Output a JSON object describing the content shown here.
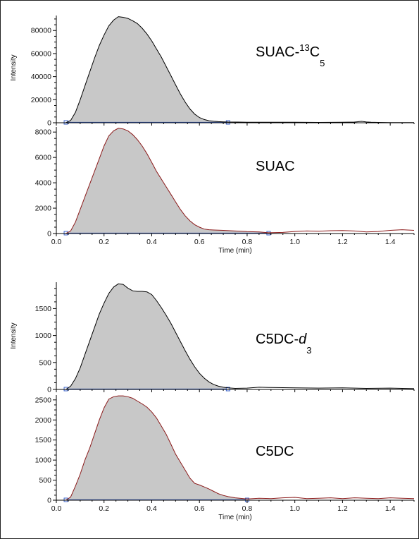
{
  "chart_data": [
    {
      "type": "area",
      "label_parts": [
        {
          "text": "SUAC-",
          "style": "normal"
        },
        {
          "text": "13",
          "style": "sup"
        },
        {
          "text": "C",
          "style": "normal"
        },
        {
          "text": "5",
          "style": "sub"
        }
      ],
      "ylabel": "Intensity",
      "xlim": [
        0,
        1.5
      ],
      "ylim": [
        0,
        93000
      ],
      "yticks": [
        0,
        20000,
        40000,
        60000,
        80000
      ],
      "line_color": "#000000",
      "fill_color": "#c8c8c8",
      "integration_range": [
        0.04,
        0.72
      ],
      "x": [
        0.0,
        0.04,
        0.06,
        0.08,
        0.1,
        0.12,
        0.14,
        0.16,
        0.18,
        0.2,
        0.22,
        0.24,
        0.26,
        0.28,
        0.3,
        0.32,
        0.34,
        0.36,
        0.38,
        0.4,
        0.42,
        0.44,
        0.46,
        0.48,
        0.5,
        0.52,
        0.54,
        0.56,
        0.58,
        0.6,
        0.62,
        0.64,
        0.66,
        0.68,
        0.7,
        0.72,
        0.76,
        0.8,
        0.9,
        1.0,
        1.1,
        1.2,
        1.25,
        1.28,
        1.3,
        1.32,
        1.35,
        1.4,
        1.5
      ],
      "y": [
        0,
        0,
        2000,
        9000,
        20000,
        32000,
        44000,
        56000,
        67000,
        76000,
        84000,
        89000,
        92000,
        91500,
        90500,
        88500,
        86000,
        82000,
        77000,
        71000,
        64000,
        57000,
        49000,
        41000,
        33000,
        25000,
        18000,
        12000,
        7500,
        4500,
        2800,
        1800,
        1300,
        1000,
        800,
        700,
        600,
        500,
        400,
        500,
        300,
        400,
        600,
        1200,
        700,
        400,
        300,
        200,
        100
      ]
    },
    {
      "type": "area",
      "label_parts": [
        {
          "text": "SUAC",
          "style": "normal"
        }
      ],
      "xlabel": "Time (min)",
      "xlim": [
        0,
        1.5
      ],
      "ylim": [
        0,
        8400
      ],
      "yticks": [
        0,
        2000,
        4000,
        6000,
        8000
      ],
      "xticks": [
        "0.0",
        "0.2",
        "0.4",
        "0.6",
        "0.8",
        "1.0",
        "1.2",
        "1.4"
      ],
      "line_color": "#8b1a1a",
      "fill_color": "#c8c8c8",
      "integration_range": [
        0.04,
        0.89
      ],
      "x": [
        0.0,
        0.04,
        0.06,
        0.08,
        0.1,
        0.12,
        0.14,
        0.16,
        0.18,
        0.2,
        0.22,
        0.24,
        0.26,
        0.28,
        0.3,
        0.32,
        0.34,
        0.36,
        0.38,
        0.4,
        0.42,
        0.44,
        0.46,
        0.48,
        0.5,
        0.52,
        0.54,
        0.56,
        0.58,
        0.6,
        0.62,
        0.64,
        0.66,
        0.7,
        0.75,
        0.8,
        0.85,
        0.89,
        0.95,
        1.0,
        1.05,
        1.1,
        1.15,
        1.2,
        1.25,
        1.3,
        1.35,
        1.4,
        1.45,
        1.5
      ],
      "y": [
        0,
        0,
        200,
        900,
        1900,
        2900,
        3900,
        4900,
        5900,
        6900,
        7700,
        8100,
        8300,
        8250,
        8100,
        7800,
        7400,
        6900,
        6300,
        5600,
        4900,
        4300,
        3700,
        3100,
        2500,
        1900,
        1400,
        1000,
        700,
        500,
        350,
        300,
        280,
        250,
        200,
        150,
        120,
        60,
        90,
        160,
        200,
        180,
        220,
        240,
        200,
        120,
        160,
        250,
        300,
        250
      ]
    },
    {
      "type": "area",
      "label_parts": [
        {
          "text": "C5DC-",
          "style": "normal"
        },
        {
          "text": "d",
          "style": "italic"
        },
        {
          "text": "3",
          "style": "sub"
        }
      ],
      "ylabel": "Intensity",
      "xlim": [
        0,
        1.5
      ],
      "ylim": [
        0,
        1990
      ],
      "yticks": [
        0,
        500,
        1000,
        1500
      ],
      "line_color": "#000000",
      "fill_color": "#c8c8c8",
      "integration_range": [
        0.04,
        0.72
      ],
      "x": [
        0.0,
        0.04,
        0.06,
        0.08,
        0.1,
        0.12,
        0.14,
        0.16,
        0.18,
        0.2,
        0.22,
        0.24,
        0.26,
        0.28,
        0.3,
        0.32,
        0.34,
        0.36,
        0.38,
        0.4,
        0.42,
        0.44,
        0.46,
        0.48,
        0.5,
        0.52,
        0.54,
        0.56,
        0.58,
        0.6,
        0.62,
        0.64,
        0.66,
        0.68,
        0.7,
        0.72,
        0.75,
        0.8,
        0.85,
        0.9,
        1.0,
        1.1,
        1.2,
        1.3,
        1.4,
        1.5
      ],
      "y": [
        0,
        0,
        60,
        200,
        400,
        650,
        900,
        1150,
        1400,
        1600,
        1780,
        1900,
        1960,
        1950,
        1880,
        1830,
        1820,
        1820,
        1810,
        1760,
        1650,
        1520,
        1380,
        1230,
        1060,
        890,
        720,
        560,
        420,
        300,
        210,
        140,
        90,
        60,
        40,
        30,
        20,
        25,
        40,
        35,
        30,
        25,
        30,
        20,
        25,
        15
      ]
    },
    {
      "type": "area",
      "label_parts": [
        {
          "text": "C5DC",
          "style": "normal"
        }
      ],
      "xlabel": "Time (min)",
      "xlim": [
        0,
        1.5
      ],
      "ylim": [
        0,
        2620
      ],
      "yticks": [
        0,
        500,
        1000,
        1500,
        2000,
        2500
      ],
      "xticks": [
        "0.0",
        "0.2",
        "0.4",
        "0.6",
        "0.8",
        "1.0",
        "1.2",
        "1.4"
      ],
      "line_color": "#8b1a1a",
      "fill_color": "#c8c8c8",
      "integration_range": [
        0.04,
        0.8
      ],
      "x": [
        0.0,
        0.04,
        0.06,
        0.08,
        0.1,
        0.12,
        0.14,
        0.16,
        0.18,
        0.2,
        0.22,
        0.24,
        0.26,
        0.28,
        0.3,
        0.32,
        0.34,
        0.36,
        0.38,
        0.4,
        0.42,
        0.44,
        0.46,
        0.48,
        0.5,
        0.52,
        0.54,
        0.56,
        0.58,
        0.6,
        0.62,
        0.64,
        0.66,
        0.68,
        0.7,
        0.72,
        0.75,
        0.8,
        0.85,
        0.9,
        0.95,
        1.0,
        1.05,
        1.1,
        1.15,
        1.2,
        1.25,
        1.3,
        1.35,
        1.4,
        1.45,
        1.5
      ],
      "y": [
        0,
        0,
        80,
        350,
        650,
        1000,
        1300,
        1650,
        2000,
        2300,
        2520,
        2580,
        2600,
        2600,
        2580,
        2540,
        2470,
        2400,
        2320,
        2200,
        2050,
        1850,
        1650,
        1400,
        1150,
        950,
        750,
        550,
        420,
        380,
        330,
        280,
        220,
        160,
        120,
        90,
        60,
        30,
        50,
        40,
        60,
        70,
        40,
        50,
        60,
        40,
        60,
        50,
        40,
        60,
        50,
        40
      ]
    }
  ]
}
